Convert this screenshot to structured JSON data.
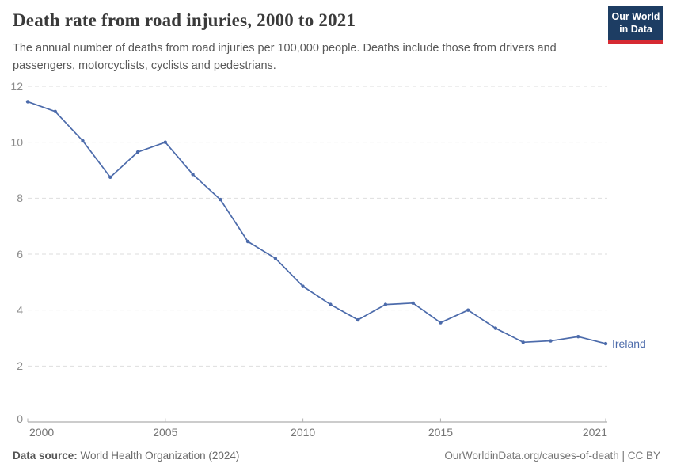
{
  "header": {
    "title": "Death rate from road injuries, 2000 to 2021",
    "subtitle": "The annual number of deaths from road injuries per 100,000 people. Deaths include those from drivers and passengers, motorcyclists, cyclists and pedestrians."
  },
  "branding": {
    "logo_line1": "Our World",
    "logo_line2": "in Data",
    "logo_bg_color": "#1d3d63",
    "logo_accent_color": "#d62a32"
  },
  "footer": {
    "data_source_label": "Data source:",
    "data_source_value": "World Health Organization (2024)",
    "link_text": "OurWorldinData.org/causes-of-death | CC BY"
  },
  "chart_data": {
    "type": "line",
    "title": "Death rate from road injuries, 2000 to 2021",
    "x": [
      2000,
      2001,
      2002,
      2003,
      2004,
      2005,
      2006,
      2007,
      2008,
      2009,
      2010,
      2011,
      2012,
      2013,
      2014,
      2015,
      2016,
      2017,
      2018,
      2019,
      2020,
      2021
    ],
    "series": [
      {
        "name": "Ireland",
        "color": "#4c6bab",
        "values": [
          11.45,
          11.1,
          10.05,
          8.75,
          9.65,
          10.0,
          8.85,
          7.95,
          6.45,
          5.85,
          4.85,
          4.2,
          3.65,
          4.2,
          4.25,
          3.55,
          4.0,
          3.35,
          2.85,
          2.9,
          3.05,
          2.8
        ]
      }
    ],
    "xticks": [
      2000,
      2005,
      2010,
      2015,
      2021
    ],
    "yticks": [
      0,
      2,
      4,
      6,
      8,
      10,
      12
    ],
    "ylim": [
      0,
      12
    ],
    "xlabel": "",
    "ylabel": "",
    "grid": "horizontal-dashed",
    "legend": "end-of-line-label",
    "grid_color": "#dedede",
    "axis_color": "#9a9a9a",
    "ytick_label_color": "#8c8c8c",
    "xtick_label_color": "#757575"
  }
}
